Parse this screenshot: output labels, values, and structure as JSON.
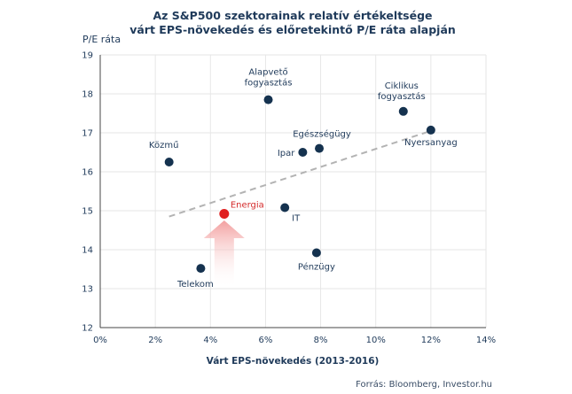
{
  "chart_data": {
    "type": "scatter",
    "title_lines": [
      "Az S&P500 szektorainak relatív értékeltsége",
      "várt EPS-növekedés és előretekintő P/E ráta alapján"
    ],
    "xlabel": "Várt EPS-növekedés (2013-2016)",
    "ylabel": "P/E ráta",
    "xlim": [
      0,
      14
    ],
    "ylim": [
      12,
      19
    ],
    "x_ticks": [
      "0%",
      "2%",
      "4%",
      "6%",
      "8%",
      "10%",
      "12%",
      "14%"
    ],
    "y_ticks": [
      "12",
      "13",
      "14",
      "15",
      "16",
      "17",
      "18",
      "19"
    ],
    "grid": true,
    "trendline": {
      "x": [
        2.5,
        12
      ],
      "y": [
        14.85,
        17.05
      ],
      "style": "dashed",
      "color": "#b3b3b3"
    },
    "points": [
      {
        "label_lines": [
          "Közmű"
        ],
        "x": 2.5,
        "y": 16.25,
        "color": "#15324f",
        "highlight": false
      },
      {
        "label_lines": [
          "Alapvető",
          "fogyasztás"
        ],
        "x": 6.1,
        "y": 17.85,
        "color": "#15324f",
        "highlight": false
      },
      {
        "label_lines": [
          "Ciklikus",
          "fogyasztás"
        ],
        "x": 11.0,
        "y": 17.55,
        "color": "#15324f",
        "highlight": false
      },
      {
        "label_lines": [
          "Nyersanyag"
        ],
        "x": 12.0,
        "y": 17.07,
        "color": "#15324f",
        "highlight": false
      },
      {
        "label_lines": [
          "Egészségügy"
        ],
        "x": 7.95,
        "y": 16.6,
        "color": "#15324f",
        "highlight": false
      },
      {
        "label_lines": [
          "Ipar"
        ],
        "x": 7.35,
        "y": 16.5,
        "color": "#15324f",
        "highlight": false
      },
      {
        "label_lines": [
          "Energia"
        ],
        "x": 4.5,
        "y": 14.92,
        "color": "#e02020",
        "highlight": true
      },
      {
        "label_lines": [
          "IT"
        ],
        "x": 6.7,
        "y": 15.08,
        "color": "#15324f",
        "highlight": false
      },
      {
        "label_lines": [
          "Pénzügy"
        ],
        "x": 7.85,
        "y": 13.92,
        "color": "#15324f",
        "highlight": false
      },
      {
        "label_lines": [
          "Telekom"
        ],
        "x": 3.65,
        "y": 13.52,
        "color": "#15324f",
        "highlight": false
      }
    ],
    "arrow": {
      "x": 4.5,
      "y_from": 13.0,
      "y_to": 14.75,
      "color": "#f2a3a3"
    }
  },
  "source": "Forrás: Bloomberg, Investor.hu"
}
